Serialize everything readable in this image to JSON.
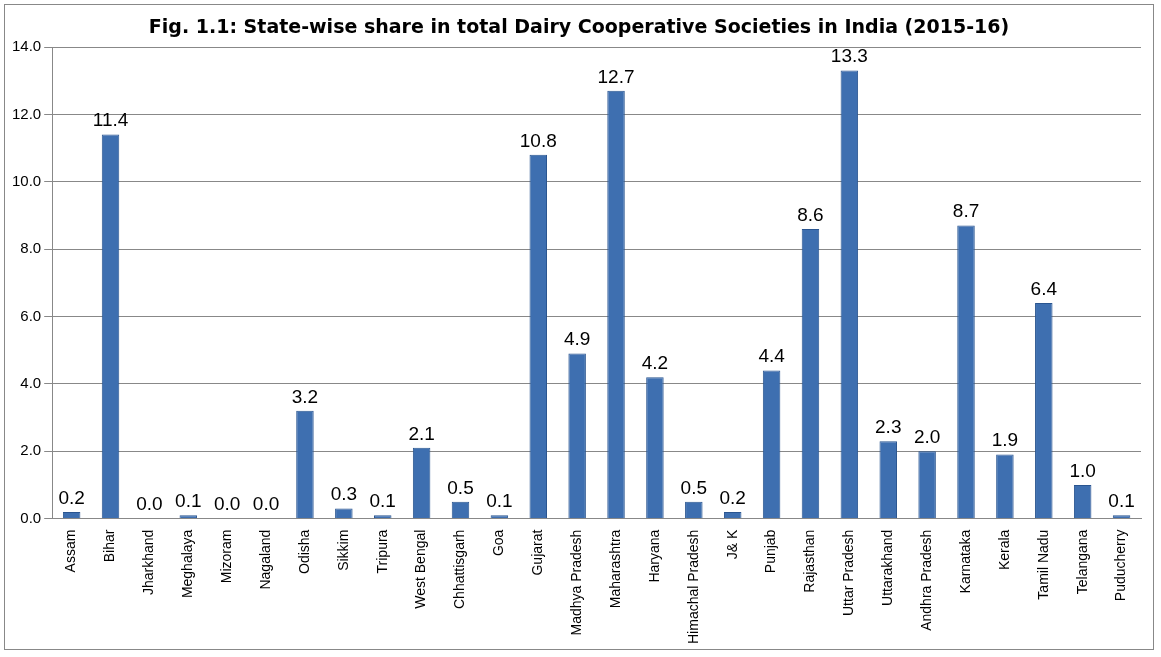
{
  "chart_data": {
    "type": "bar",
    "title": "Fig. 1.1: State-wise share in total Dairy Cooperative Societies in India (2015-16)",
    "categories": [
      "Assam",
      "Bihar",
      "Jharkhand",
      "Meghalaya",
      "Mizoram",
      "Nagaland",
      "Odisha",
      "Sikkim",
      "Tripura",
      "West Bengal",
      "Chhattisgarh",
      "Goa",
      "Gujarat",
      "Madhya Pradesh",
      "Maharashtra",
      "Haryana",
      "Himachal Pradesh",
      "J& K",
      "Punjab",
      "Rajasthan",
      "Uttar Pradesh",
      "Uttarakhand",
      "Andhra Pradesh",
      "Karnataka",
      "Kerala",
      "Tamil Nadu",
      "Telangana",
      "Puducherry"
    ],
    "values": [
      0.2,
      11.4,
      0.0,
      0.1,
      0.0,
      0.0,
      3.2,
      0.3,
      0.1,
      2.1,
      0.5,
      0.1,
      10.8,
      4.9,
      12.7,
      4.2,
      0.5,
      0.2,
      4.4,
      8.6,
      13.3,
      2.3,
      2.0,
      8.7,
      1.9,
      6.4,
      1.0,
      0.1
    ],
    "value_labels": [
      "0.2",
      "11.4",
      "0.0",
      "0.1",
      "0.0",
      "0.0",
      "3.2",
      "0.3",
      "0.1",
      "2.1",
      "0.5",
      "0.1",
      "10.8",
      "4.9",
      "12.7",
      "4.2",
      "0.5",
      "0.2",
      "4.4",
      "8.6",
      "13.3",
      "2.3",
      "2.0",
      "8.7",
      "1.9",
      "6.4",
      "1.0",
      "0.1"
    ],
    "color": "#3e6fb0",
    "ylim": [
      0,
      14
    ],
    "yticks": [
      {
        "value": 0,
        "label": "0.0"
      },
      {
        "value": 2,
        "label": "2.0"
      },
      {
        "value": 4,
        "label": "4.0"
      },
      {
        "value": 6,
        "label": "6.0"
      },
      {
        "value": 8,
        "label": "8.0"
      },
      {
        "value": 10,
        "label": "10.0"
      },
      {
        "value": 12,
        "label": "12.0"
      },
      {
        "value": 14,
        "label": "14.0"
      }
    ],
    "grid": "y",
    "legend": false
  }
}
